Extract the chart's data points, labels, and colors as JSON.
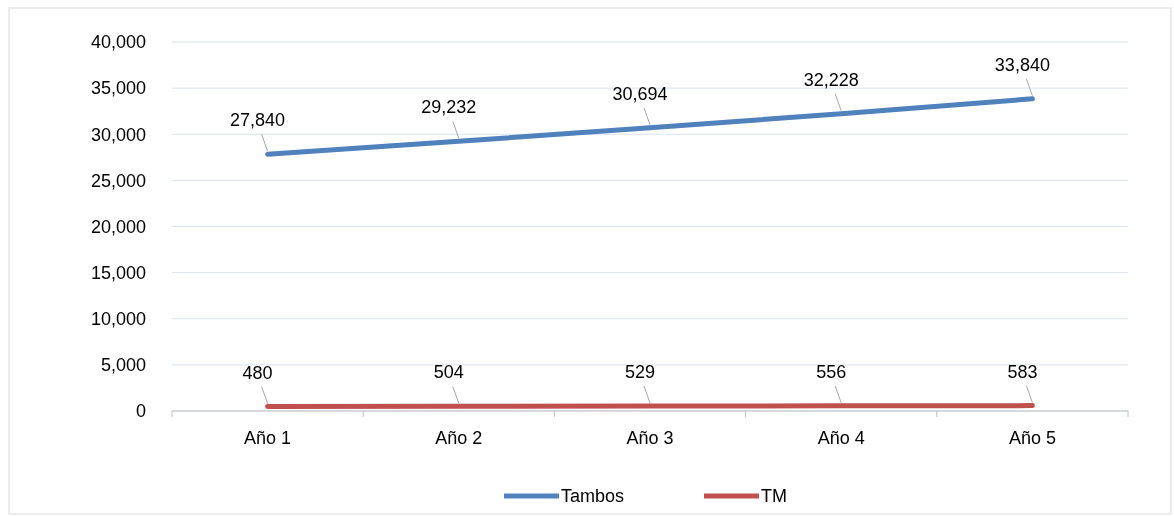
{
  "chart_data": {
    "type": "line",
    "categories": [
      "Año 1",
      "Año 2",
      "Año 3",
      "Año 4",
      "Año 5"
    ],
    "series": [
      {
        "name": "Tambos",
        "color": "#4f81bd",
        "values": [
          27840,
          29232,
          30694,
          32228,
          33840
        ],
        "value_labels": [
          "27,840",
          "29,232",
          "30,694",
          "32,228",
          "33,840"
        ]
      },
      {
        "name": "TM",
        "color": "#c0504d",
        "values": [
          480,
          504,
          529,
          556,
          583
        ],
        "value_labels": [
          "480",
          "504",
          "529",
          "556",
          "583"
        ]
      }
    ],
    "ylim": [
      0,
      40000
    ],
    "yticks": [
      {
        "value": 0,
        "label": "0"
      },
      {
        "value": 5000,
        "label": "5,000"
      },
      {
        "value": 10000,
        "label": "10,000"
      },
      {
        "value": 15000,
        "label": "15,000"
      },
      {
        "value": 20000,
        "label": "20,000"
      },
      {
        "value": 25000,
        "label": "25,000"
      },
      {
        "value": 30000,
        "label": "30,000"
      },
      {
        "value": 35000,
        "label": "35,000"
      },
      {
        "value": 40000,
        "label": "40,000"
      }
    ],
    "grid": "y",
    "legend": "bottom",
    "marker": "none",
    "line_style": "solid"
  }
}
